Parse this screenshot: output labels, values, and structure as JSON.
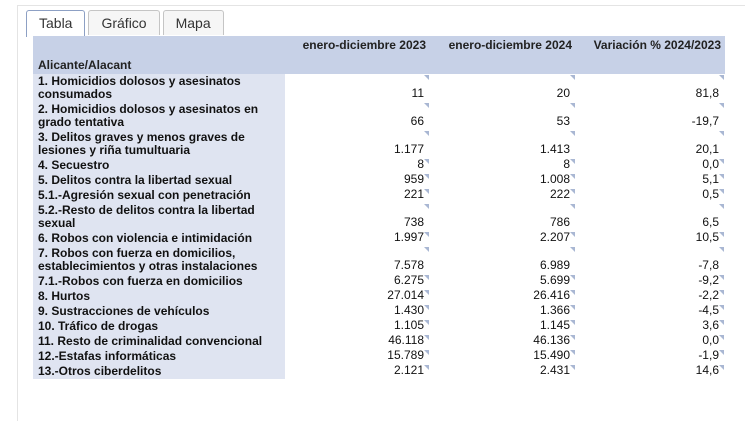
{
  "tabs": [
    "Tabla",
    "Gráfico",
    "Mapa"
  ],
  "table": {
    "region": "Alicante/Alacant",
    "columns": [
      "enero-diciembre 2023",
      "enero-diciembre 2024",
      "Variación % 2024/2023"
    ],
    "rows": [
      [
        "1. Homicidios dolosos y asesinatos consumados",
        "11",
        "20",
        "81,8"
      ],
      [
        "2. Homicidios dolosos y asesinatos en grado tentativa",
        "66",
        "53",
        "-19,7"
      ],
      [
        "3. Delitos graves y menos graves de lesiones y riña tumultuaria",
        "1.177",
        "1.413",
        "20,1"
      ],
      [
        "4. Secuestro",
        "8",
        "8",
        "0,0"
      ],
      [
        "5. Delitos contra la libertad sexual",
        "959",
        "1.008",
        "5,1"
      ],
      [
        "5.1.-Agresión sexual con penetración",
        "221",
        "222",
        "0,5"
      ],
      [
        "5.2.-Resto de delitos contra la libertad sexual",
        "738",
        "786",
        "6,5"
      ],
      [
        "6. Robos con violencia e intimidación",
        "1.997",
        "2.207",
        "10,5"
      ],
      [
        "7. Robos con fuerza en domicilios, establecimientos y otras instalaciones",
        "7.578",
        "6.989",
        "-7,8"
      ],
      [
        "7.1.-Robos con fuerza en domicilios",
        "6.275",
        "5.699",
        "-9,2"
      ],
      [
        "8. Hurtos",
        "27.014",
        "26.416",
        "-2,2"
      ],
      [
        "9. Sustracciones de vehículos",
        "1.430",
        "1.366",
        "-4,5"
      ],
      [
        "10. Tráfico de drogas",
        "1.105",
        "1.145",
        "3,6"
      ],
      [
        "11. Resto de criminalidad convencional",
        "46.118",
        "46.136",
        "0,0"
      ],
      [
        "12.-Estafas informáticas",
        "15.789",
        "15.490",
        "-1,9"
      ],
      [
        "13.-Otros ciberdelitos",
        "2.121",
        "2.431",
        "14,6"
      ]
    ]
  }
}
